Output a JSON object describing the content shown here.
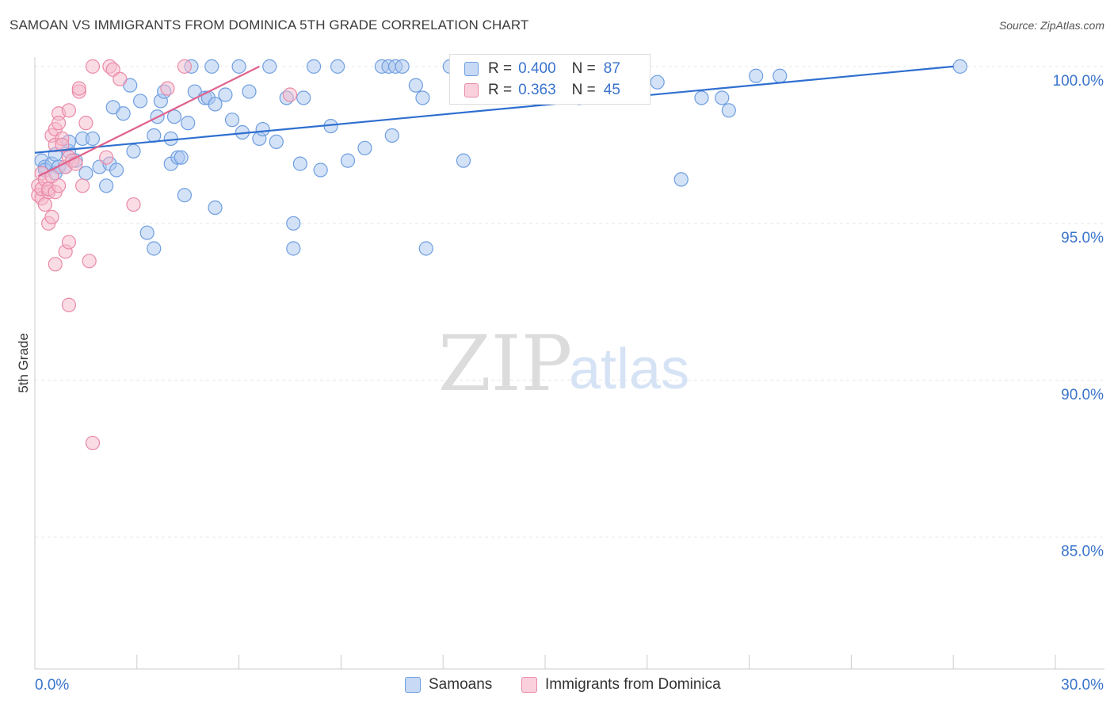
{
  "header": {
    "title": "SAMOAN VS IMMIGRANTS FROM DOMINICA 5TH GRADE CORRELATION CHART",
    "source": "Source: ZipAtlas.com"
  },
  "watermark": {
    "zip": "ZIP",
    "atlas": "atlas"
  },
  "colors": {
    "blue_fill": "#a9c6f0",
    "blue_stroke": "#6e9ee0",
    "blue_line": "#2f6fd0",
    "pink_fill": "#f6b9cb",
    "pink_stroke": "#ea8aa8",
    "pink_line": "#e0608c",
    "axis_text": "#3a74cc",
    "grid": "#e6e6e6"
  },
  "legend_top": {
    "rows": [
      {
        "r_label": "R =",
        "r_value": "0.400",
        "n_label": "N =",
        "n_value": "87"
      },
      {
        "r_label": "R =",
        "r_value": "0.363",
        "n_label": "N =",
        "n_value": "45"
      }
    ]
  },
  "chart_data": {
    "type": "scatter",
    "title": "SAMOAN VS IMMIGRANTS FROM DOMINICA 5TH GRADE CORRELATION CHART",
    "xlabel": "",
    "ylabel": "5th Grade",
    "xlim": [
      0,
      30
    ],
    "ylim": [
      80.8,
      100.3
    ],
    "x_tick_labels": [
      "0.0%",
      "30.0%"
    ],
    "y_ticks": [
      85,
      90,
      95,
      100
    ],
    "y_tick_labels": [
      "85.0%",
      "90.0%",
      "95.0%",
      "100.0%"
    ],
    "legend_position": "bottom-center",
    "series": [
      {
        "name": "Samoans",
        "r": 0.4,
        "n": 87,
        "trendline": {
          "x": [
            0,
            27
          ],
          "y": [
            97.25,
            100.0
          ]
        },
        "points": [
          [
            0.2,
            97.0
          ],
          [
            0.3,
            96.8
          ],
          [
            0.3,
            96.7
          ],
          [
            0.5,
            96.9
          ],
          [
            0.6,
            96.6
          ],
          [
            0.7,
            96.8
          ],
          [
            0.6,
            97.2
          ],
          [
            0.9,
            96.8
          ],
          [
            1.0,
            97.3
          ],
          [
            1.0,
            97.6
          ],
          [
            1.2,
            97.0
          ],
          [
            1.4,
            97.7
          ],
          [
            1.5,
            96.6
          ],
          [
            1.7,
            97.7
          ],
          [
            1.9,
            96.8
          ],
          [
            2.1,
            96.2
          ],
          [
            2.2,
            96.9
          ],
          [
            2.3,
            98.7
          ],
          [
            2.4,
            96.7
          ],
          [
            2.6,
            98.5
          ],
          [
            2.8,
            99.4
          ],
          [
            2.9,
            97.3
          ],
          [
            3.1,
            98.9
          ],
          [
            3.3,
            94.7
          ],
          [
            3.5,
            94.2
          ],
          [
            3.5,
            97.8
          ],
          [
            3.6,
            98.4
          ],
          [
            3.7,
            98.9
          ],
          [
            3.8,
            99.2
          ],
          [
            4.0,
            97.7
          ],
          [
            4.0,
            96.9
          ],
          [
            4.1,
            98.4
          ],
          [
            4.2,
            97.1
          ],
          [
            4.3,
            97.1
          ],
          [
            4.4,
            95.9
          ],
          [
            4.5,
            98.2
          ],
          [
            4.6,
            100.0
          ],
          [
            4.7,
            99.2
          ],
          [
            5.0,
            99.0
          ],
          [
            5.1,
            99.0
          ],
          [
            5.2,
            100.0
          ],
          [
            5.3,
            98.8
          ],
          [
            5.3,
            95.5
          ],
          [
            5.6,
            99.1
          ],
          [
            5.8,
            98.3
          ],
          [
            6.0,
            100.0
          ],
          [
            6.1,
            97.9
          ],
          [
            6.3,
            99.2
          ],
          [
            6.6,
            97.7
          ],
          [
            6.7,
            98.0
          ],
          [
            6.9,
            100.0
          ],
          [
            7.1,
            97.6
          ],
          [
            7.4,
            99.0
          ],
          [
            7.6,
            95.0
          ],
          [
            7.6,
            94.2
          ],
          [
            7.8,
            96.9
          ],
          [
            7.9,
            99.0
          ],
          [
            8.2,
            100.0
          ],
          [
            8.4,
            96.7
          ],
          [
            8.7,
            98.1
          ],
          [
            8.9,
            100.0
          ],
          [
            9.2,
            97.0
          ],
          [
            9.7,
            97.4
          ],
          [
            10.2,
            100.0
          ],
          [
            10.4,
            100.0
          ],
          [
            10.5,
            97.8
          ],
          [
            10.6,
            100.0
          ],
          [
            10.8,
            100.0
          ],
          [
            11.2,
            99.4
          ],
          [
            11.4,
            99.0
          ],
          [
            11.5,
            94.2
          ],
          [
            12.2,
            100.0
          ],
          [
            12.6,
            97.0
          ],
          [
            13.2,
            100.0
          ],
          [
            13.5,
            100.0
          ],
          [
            14.7,
            99.0
          ],
          [
            15.3,
            99.3
          ],
          [
            16.0,
            99.0
          ],
          [
            16.8,
            99.4
          ],
          [
            18.3,
            99.5
          ],
          [
            19.0,
            96.4
          ],
          [
            19.6,
            99.0
          ],
          [
            20.2,
            99.0
          ],
          [
            20.4,
            98.6
          ],
          [
            21.2,
            99.7
          ],
          [
            21.9,
            99.7
          ],
          [
            27.2,
            100.0
          ]
        ]
      },
      {
        "name": "Immigrants from Dominica",
        "r": 0.363,
        "n": 45,
        "trendline": {
          "x": [
            0.1,
            6.6
          ],
          "y": [
            96.5,
            100.0
          ]
        },
        "points": [
          [
            0.1,
            96.2
          ],
          [
            0.1,
            95.9
          ],
          [
            0.2,
            96.6
          ],
          [
            0.2,
            95.8
          ],
          [
            0.2,
            96.1
          ],
          [
            0.3,
            96.4
          ],
          [
            0.3,
            95.6
          ],
          [
            0.4,
            96.0
          ],
          [
            0.4,
            96.1
          ],
          [
            0.4,
            95.0
          ],
          [
            0.5,
            95.2
          ],
          [
            0.5,
            96.5
          ],
          [
            0.5,
            97.8
          ],
          [
            0.6,
            96.0
          ],
          [
            0.6,
            97.5
          ],
          [
            0.6,
            93.7
          ],
          [
            0.6,
            98.0
          ],
          [
            0.7,
            98.5
          ],
          [
            0.7,
            96.2
          ],
          [
            0.7,
            98.2
          ],
          [
            0.8,
            97.7
          ],
          [
            0.8,
            97.5
          ],
          [
            0.9,
            94.1
          ],
          [
            0.9,
            96.8
          ],
          [
            1.0,
            97.1
          ],
          [
            1.0,
            94.4
          ],
          [
            1.0,
            92.4
          ],
          [
            1.0,
            98.6
          ],
          [
            1.1,
            97.0
          ],
          [
            1.2,
            96.9
          ],
          [
            1.3,
            99.2
          ],
          [
            1.3,
            99.3
          ],
          [
            1.4,
            96.2
          ],
          [
            1.5,
            98.2
          ],
          [
            1.6,
            93.8
          ],
          [
            1.7,
            88.0
          ],
          [
            1.7,
            100.0
          ],
          [
            2.1,
            97.1
          ],
          [
            2.2,
            100.0
          ],
          [
            2.3,
            99.9
          ],
          [
            2.5,
            99.6
          ],
          [
            2.9,
            95.6
          ],
          [
            3.9,
            99.3
          ],
          [
            4.4,
            100.0
          ],
          [
            7.5,
            99.1
          ]
        ]
      }
    ]
  },
  "bottom_legend": {
    "items": [
      {
        "label": "Samoans"
      },
      {
        "label": "Immigrants from Dominica"
      }
    ]
  }
}
